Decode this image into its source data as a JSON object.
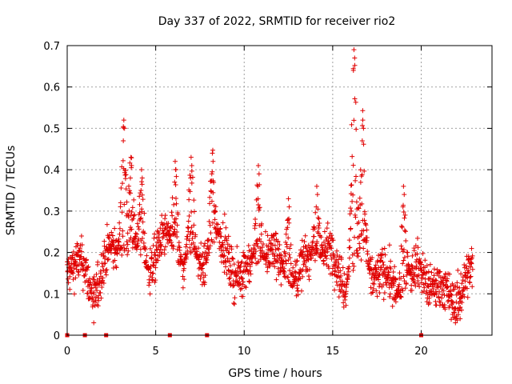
{
  "chart_data": {
    "type": "scatter",
    "title": "Day 337 of 2022, SRMTID for receiver rio2",
    "xlabel": "GPS time / hours",
    "ylabel": "SRMTID / TECUs",
    "xlim": [
      0,
      24
    ],
    "ylim": [
      0,
      0.7
    ],
    "x_ticks": [
      "0",
      "5",
      "10",
      "15",
      "20"
    ],
    "x_tick_values": [
      0,
      5,
      10,
      15,
      20
    ],
    "y_ticks": [
      "0",
      "0.1",
      "0.2",
      "0.3",
      "0.4",
      "0.5",
      "0.6",
      "0.7"
    ],
    "y_tick_values": [
      0,
      0.1,
      0.2,
      0.3,
      0.4,
      0.5,
      0.6,
      0.7
    ],
    "grid": true,
    "marker": "plus",
    "color": "#e00000",
    "sampling": {
      "x_start": 0.0,
      "x_end": 22.9,
      "step_hours": 0.025,
      "baseline": [
        [
          0.0,
          0.15
        ],
        [
          1.0,
          0.16
        ],
        [
          1.5,
          0.14
        ],
        [
          2.0,
          0.17
        ],
        [
          3.0,
          0.18
        ],
        [
          4.0,
          0.2
        ],
        [
          5.0,
          0.2
        ],
        [
          6.0,
          0.19
        ],
        [
          7.0,
          0.19
        ],
        [
          8.0,
          0.2
        ],
        [
          9.0,
          0.18
        ],
        [
          10.0,
          0.17
        ],
        [
          11.0,
          0.18
        ],
        [
          12.0,
          0.16
        ],
        [
          13.0,
          0.16
        ],
        [
          14.0,
          0.18
        ],
        [
          15.0,
          0.18
        ],
        [
          16.0,
          0.16
        ],
        [
          17.0,
          0.14
        ],
        [
          18.0,
          0.14
        ],
        [
          19.0,
          0.13
        ],
        [
          20.0,
          0.13
        ],
        [
          21.0,
          0.12
        ],
        [
          22.0,
          0.11
        ],
        [
          22.9,
          0.11
        ]
      ],
      "spread": 0.045
    },
    "peaks": [
      {
        "x": 3.2,
        "y": 0.52
      },
      {
        "x": 3.6,
        "y": 0.43
      },
      {
        "x": 4.2,
        "y": 0.4
      },
      {
        "x": 6.1,
        "y": 0.42
      },
      {
        "x": 7.0,
        "y": 0.43
      },
      {
        "x": 8.2,
        "y": 0.44
      },
      {
        "x": 10.8,
        "y": 0.41
      },
      {
        "x": 12.5,
        "y": 0.33
      },
      {
        "x": 14.1,
        "y": 0.36
      },
      {
        "x": 16.2,
        "y": 0.69
      },
      {
        "x": 16.7,
        "y": 0.52
      },
      {
        "x": 19.0,
        "y": 0.36
      }
    ],
    "lows": [
      {
        "x": 1.5,
        "y": 0.03
      },
      {
        "x": 22.2,
        "y": 0.04
      }
    ],
    "data_gaps_at_zero": [
      0.0,
      1.0,
      2.2,
      5.8,
      7.9,
      20.0
    ]
  }
}
